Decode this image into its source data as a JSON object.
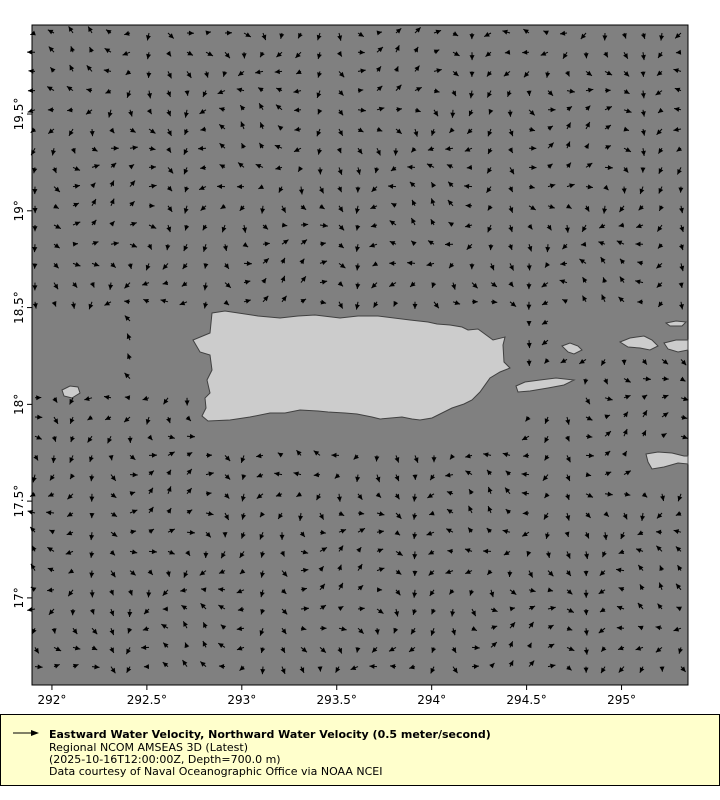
{
  "chart_data": {
    "type": "vector-map",
    "xlim": [
      291.895,
      295.35
    ],
    "ylim": [
      16.55,
      19.96
    ],
    "x_ticks": [
      "292°",
      "292.5°",
      "293°",
      "293.5°",
      "294°",
      "294.5°",
      "295°"
    ],
    "x_tick_values": [
      292,
      292.5,
      293,
      293.5,
      294,
      294.5,
      295
    ],
    "y_ticks": [
      "19.5°",
      "19°",
      "18.5°",
      "18°",
      "17.5°",
      "17°"
    ],
    "y_tick_values": [
      19.5,
      19,
      18.5,
      18,
      17.5,
      17
    ],
    "colors": {
      "ocean": "#808080",
      "land": "#cccccc",
      "coast": "#404040",
      "arrow": "#000000",
      "legend_bg": "#ffffcc"
    }
  },
  "legend": {
    "title": "Eastward Water Velocity, Northward Water Velocity (0.5 meter/second)",
    "line2": "Regional NCOM AMSEAS 3D (Latest)",
    "line3": "(2025-10-16T12:00:00Z, Depth=700.0 m)",
    "line4": "Data courtesy of Naval Oceanographic Office via NOAA NCEI"
  }
}
